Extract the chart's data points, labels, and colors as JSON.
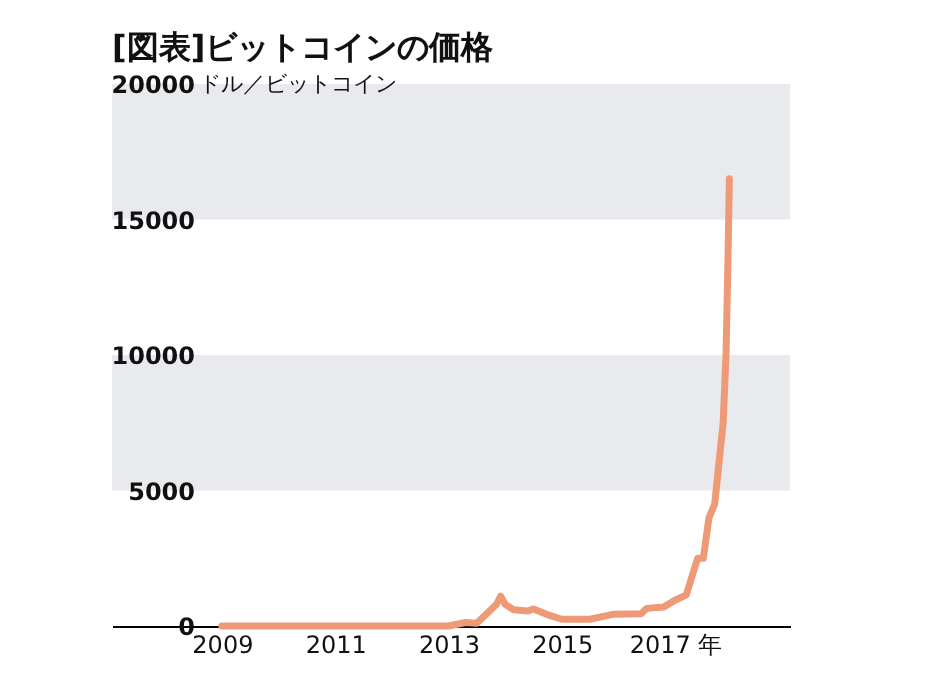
{
  "chart_data": {
    "type": "line",
    "title": "[図表]ビットコインの価格",
    "ylabel": "ドル／ビットコイン",
    "x": [
      2009.0,
      2010.5,
      2011.4,
      2012.0,
      2013.0,
      2013.3,
      2013.5,
      2013.85,
      2013.92,
      2014.0,
      2014.15,
      2014.4,
      2014.5,
      2014.8,
      2015.0,
      2015.5,
      2015.9,
      2016.4,
      2016.5,
      2016.8,
      2017.0,
      2017.2,
      2017.4,
      2017.5,
      2017.6,
      2017.7,
      2017.8,
      2017.85,
      2017.9,
      2017.93,
      2017.96
    ],
    "series": [
      {
        "color": "#ef9a76",
        "values": [
          0,
          0,
          0,
          0,
          0,
          130,
          100,
          800,
          1100,
          800,
          600,
          550,
          630,
          380,
          250,
          250,
          430,
          450,
          650,
          700,
          950,
          1150,
          2500,
          2500,
          4000,
          4500,
          6500,
          7500,
          10000,
          13000,
          16500
        ]
      }
    ],
    "xlim": [
      2007.06,
      2019.03
    ],
    "xticks": [
      2009,
      2011,
      2013,
      2015,
      {
        "value": 2017,
        "label": "2017 年"
      }
    ],
    "ylim": [
      0,
      20000
    ],
    "yticks": [
      0,
      5000,
      10000,
      15000,
      20000
    ],
    "bands": [
      {
        "axis": "y",
        "from": 5000,
        "to": 10000,
        "color": "#e8eaed"
      },
      {
        "axis": "y",
        "from": 15000,
        "to": 20000,
        "color": "#e8eaed"
      }
    ],
    "line_style": "solid",
    "marker": "none",
    "grid": false
  }
}
